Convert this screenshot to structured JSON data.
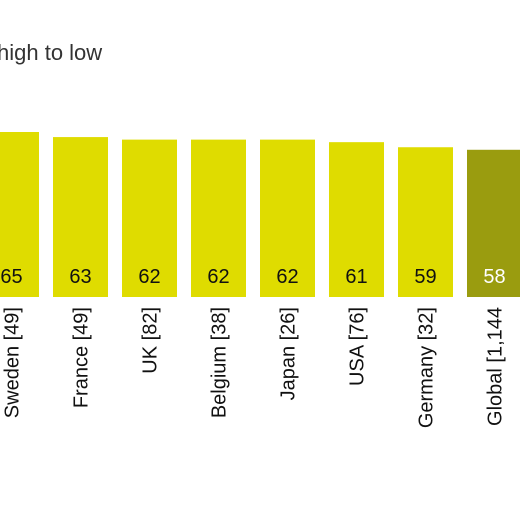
{
  "chart_data": {
    "type": "bar",
    "title": "",
    "subtitle": "high to low",
    "xlabel": "",
    "ylabel": "",
    "categories": [
      "Sweden [49]",
      "France [49]",
      "UK [82]",
      "Belgium [38]",
      "Japan [26]",
      "USA [76]",
      "Germany [32]",
      "Global [1,144"
    ],
    "values": [
      65,
      63,
      62,
      62,
      62,
      61,
      59,
      58
    ],
    "highlight_index": 7,
    "ylim": [
      0,
      65
    ],
    "grid": false,
    "legend": "none"
  },
  "colors": {
    "bar": "#dfdc00",
    "bar_highlight": "#9a9c0f",
    "label_on_bar": "#111111",
    "label_on_highlight": "#ffffff"
  }
}
